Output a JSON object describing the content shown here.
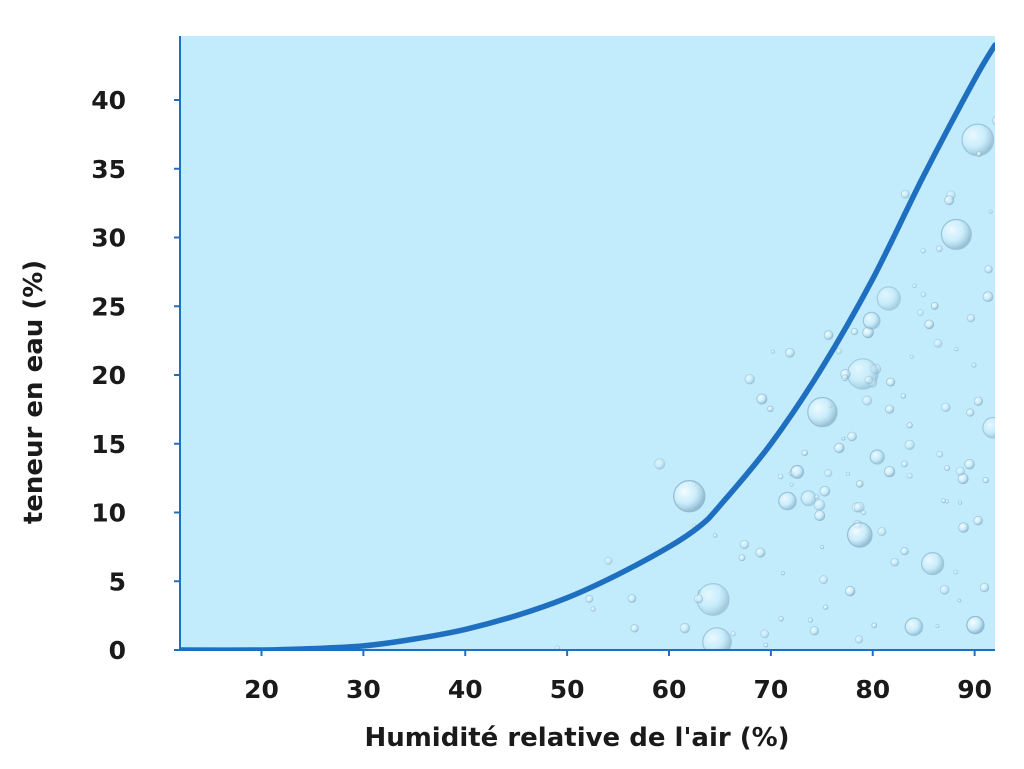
{
  "chart_data": {
    "type": "line",
    "title": "",
    "xlabel": "Humidité relative de l'air (%)",
    "ylabel": "teneur en eau (%)",
    "xlim": [
      12,
      92
    ],
    "ylim": [
      0,
      44
    ],
    "x_ticks": [
      20,
      30,
      40,
      50,
      60,
      70,
      80,
      90
    ],
    "y_ticks": [
      0,
      5,
      10,
      15,
      20,
      25,
      30,
      35,
      40
    ],
    "grid": false,
    "legend": "none",
    "series": [
      {
        "x": [
          12,
          20,
          25,
          30,
          35,
          40,
          45,
          50,
          55,
          60,
          63,
          65,
          70,
          75,
          80,
          85,
          90,
          92
        ],
        "y": [
          0,
          0,
          0.1,
          0.3,
          0.8,
          1.5,
          2.5,
          3.8,
          5.5,
          7.5,
          9,
          10.5,
          15,
          20.5,
          27,
          34.5,
          41.5,
          44
        ]
      }
    ],
    "colors": {
      "plot_background": "#c2ebfb",
      "line": "#1f6fc0",
      "axis": "#1f6fc0",
      "text": "#1a1a1a",
      "bubbles": "#8fb7cf"
    }
  }
}
